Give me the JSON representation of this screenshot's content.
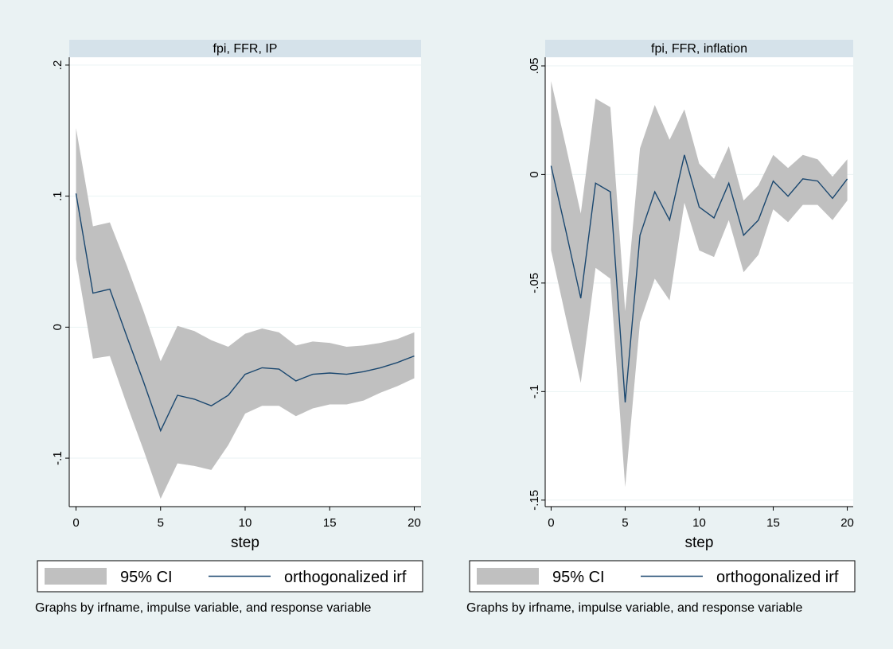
{
  "colors": {
    "background": "#eaf2f3",
    "plot_area": "#ffffff",
    "title_strip": "#d5e2ea",
    "band": "#c0c0c0",
    "line": "#1a476f",
    "grid": "#eaf2f3"
  },
  "chart_data": [
    {
      "type": "line",
      "title": "fpi, FFR, IP",
      "xlabel": "step",
      "x": [
        0,
        1,
        2,
        3,
        4,
        5,
        6,
        7,
        8,
        9,
        10,
        11,
        12,
        13,
        14,
        15,
        16,
        17,
        18,
        19,
        20
      ],
      "xticks": [
        0,
        5,
        10,
        15,
        20
      ],
      "xlim": [
        -0.4,
        20.4
      ],
      "yticks": [
        -0.1,
        0,
        0.1,
        0.2
      ],
      "ytick_labels": [
        "-.1",
        "0",
        ".1",
        ".2"
      ],
      "ylim": [
        -0.137,
        0.206
      ],
      "grid": true,
      "series": [
        {
          "name": "95% CI",
          "kind": "band",
          "upper": [
            0.152,
            0.077,
            0.08,
            0.047,
            0.012,
            -0.026,
            0.001,
            -0.003,
            -0.01,
            -0.015,
            -0.005,
            -0.001,
            -0.004,
            -0.014,
            -0.011,
            -0.012,
            -0.015,
            -0.014,
            -0.012,
            -0.009,
            -0.004
          ],
          "lower": [
            0.052,
            -0.024,
            -0.022,
            -0.059,
            -0.094,
            -0.131,
            -0.104,
            -0.106,
            -0.109,
            -0.09,
            -0.066,
            -0.06,
            -0.06,
            -0.068,
            -0.062,
            -0.059,
            -0.059,
            -0.056,
            -0.05,
            -0.045,
            -0.039
          ]
        },
        {
          "name": "orthogonalized irf",
          "kind": "line",
          "values": [
            0.102,
            0.026,
            0.029,
            -0.007,
            -0.042,
            -0.079,
            -0.052,
            -0.055,
            -0.06,
            -0.052,
            -0.036,
            -0.031,
            -0.032,
            -0.041,
            -0.036,
            -0.035,
            -0.036,
            -0.034,
            -0.031,
            -0.027,
            -0.022
          ]
        }
      ],
      "legend": {
        "placement": "bottom",
        "items": [
          "95% CI",
          "orthogonalized irf"
        ]
      },
      "note": "Graphs by irfname, impulse variable, and response variable"
    },
    {
      "type": "line",
      "title": "fpi, FFR, inflation",
      "xlabel": "step",
      "x": [
        0,
        1,
        2,
        3,
        4,
        5,
        6,
        7,
        8,
        9,
        10,
        11,
        12,
        13,
        14,
        15,
        16,
        17,
        18,
        19,
        20
      ],
      "xticks": [
        0,
        5,
        10,
        15,
        20
      ],
      "xlim": [
        -0.4,
        20.4
      ],
      "yticks": [
        -0.15,
        -0.1,
        -0.05,
        0,
        0.05
      ],
      "ytick_labels": [
        "-.15",
        "-.1",
        "-.05",
        "0",
        ".05"
      ],
      "ylim": [
        -0.153,
        0.054
      ],
      "grid": true,
      "series": [
        {
          "name": "95% CI",
          "kind": "band",
          "upper": [
            0.043,
            0.013,
            -0.018,
            0.035,
            0.031,
            -0.063,
            0.012,
            0.032,
            0.016,
            0.03,
            0.005,
            -0.002,
            0.013,
            -0.012,
            -0.005,
            0.009,
            0.003,
            0.009,
            0.007,
            -0.001,
            0.007
          ],
          "lower": [
            -0.035,
            -0.066,
            -0.096,
            -0.043,
            -0.048,
            -0.144,
            -0.068,
            -0.048,
            -0.058,
            -0.013,
            -0.035,
            -0.038,
            -0.021,
            -0.045,
            -0.037,
            -0.016,
            -0.022,
            -0.014,
            -0.014,
            -0.021,
            -0.012
          ]
        },
        {
          "name": "orthogonalized irf",
          "kind": "line",
          "values": [
            0.004,
            -0.026,
            -0.057,
            -0.004,
            -0.008,
            -0.105,
            -0.028,
            -0.008,
            -0.021,
            0.009,
            -0.015,
            -0.02,
            -0.004,
            -0.028,
            -0.021,
            -0.003,
            -0.01,
            -0.002,
            -0.003,
            -0.011,
            -0.002
          ]
        }
      ],
      "legend": {
        "placement": "bottom",
        "items": [
          "95% CI",
          "orthogonalized irf"
        ]
      },
      "note": "Graphs by irfname, impulse variable, and response variable"
    }
  ]
}
